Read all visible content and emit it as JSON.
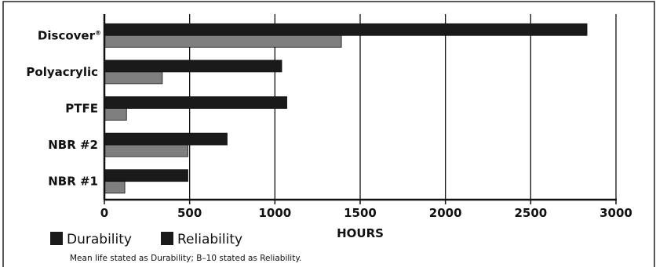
{
  "chart_data": {
    "type": "bar",
    "orientation": "horizontal",
    "categories": [
      "Discover",
      "Polyacrylic",
      "PTFE",
      "NBR #2",
      "NBR #1"
    ],
    "category_marks": [
      "®",
      "",
      "",
      "",
      ""
    ],
    "series": [
      {
        "name": "Durability",
        "values": [
          2830,
          1040,
          1070,
          720,
          490
        ],
        "color": "#1a1a1a"
      },
      {
        "name": "Reliability",
        "values": [
          1390,
          340,
          130,
          490,
          120
        ],
        "color": "#7f7f7f"
      }
    ],
    "xlim": [
      0,
      3000
    ],
    "xticks": [
      0,
      500,
      1000,
      1500,
      2000,
      2500,
      3000
    ],
    "xlabel": "HOURS",
    "ylabel": "",
    "title": "",
    "grid": "vertical",
    "legend_position": "bottom-left",
    "note": "Mean life stated as Durability; B–10 stated as Reliability."
  }
}
